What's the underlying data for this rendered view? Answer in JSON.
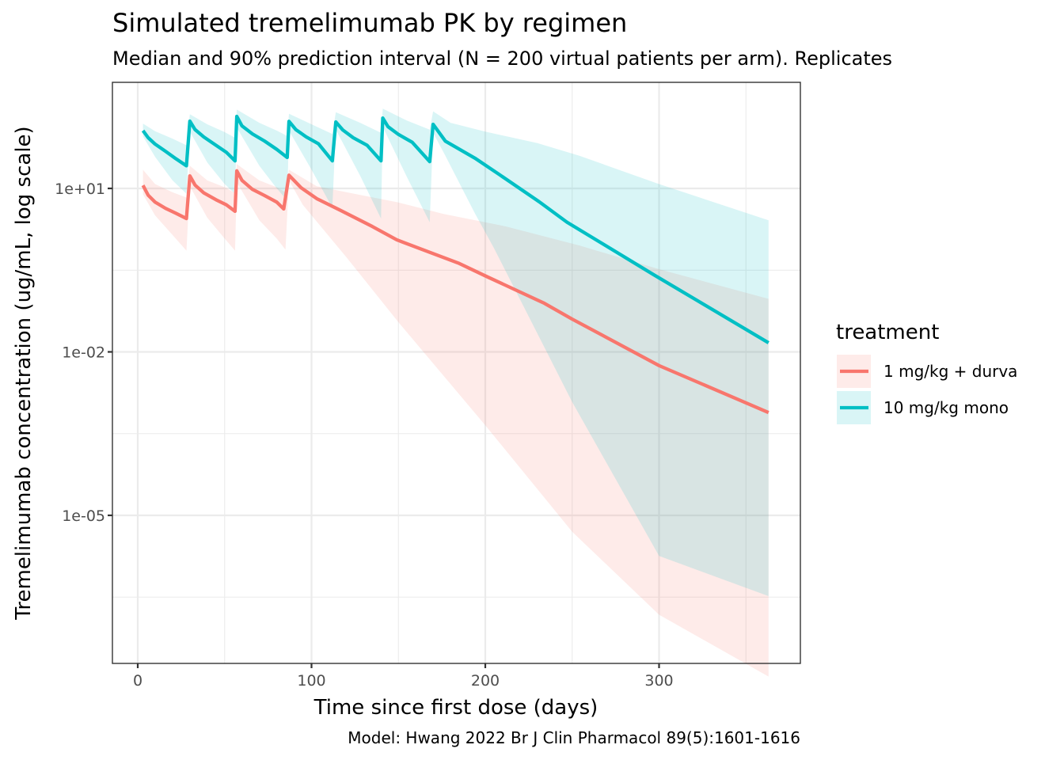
{
  "chart_data": {
    "type": "line",
    "title": "Simulated tremelimumab PK by regimen",
    "subtitle": "Median and 90% prediction interval (N = 200 virtual patients per arm). Replicates",
    "caption": "Model: Hwang 2022 Br J Clin Pharmacol 89(5):1601-1616",
    "xlabel": "Time since first dose (days)",
    "ylabel": "Tremelimumab concentration (ug/mL, log scale)",
    "y_scale": "log10",
    "xlim": [
      -15,
      381
    ],
    "ylim": [
      1e-08,
      3000
    ],
    "x_ticks": [
      0,
      100,
      200,
      300
    ],
    "x_tick_labels": [
      "0",
      "100",
      "200",
      "300"
    ],
    "x_minor_ticks": [
      50,
      150,
      250,
      350
    ],
    "y_ticks": [
      10,
      0.01,
      1e-05
    ],
    "y_tick_labels": [
      "1e+01",
      "1e-02",
      "1e-05"
    ],
    "y_minor_ticks": [
      10000,
      0.316,
      0.000316,
      3.16e-07
    ],
    "grid": true,
    "legend": {
      "title": "treatment",
      "position": "right"
    },
    "series": [
      {
        "name": "1 mg/kg + durva",
        "color": "#F8766D",
        "ribbon_color": "#F8766D",
        "median": [
          [
            3,
            11.4
          ],
          [
            6,
            7.5
          ],
          [
            10,
            5.6
          ],
          [
            16,
            4.3
          ],
          [
            22,
            3.5
          ],
          [
            28,
            2.8
          ],
          [
            30,
            17
          ],
          [
            33,
            11.5
          ],
          [
            38,
            8.3
          ],
          [
            45,
            6.2
          ],
          [
            51,
            5.0
          ],
          [
            56,
            3.8
          ],
          [
            57,
            21
          ],
          [
            60,
            14
          ],
          [
            66,
            9.6
          ],
          [
            73,
            7.4
          ],
          [
            80,
            5.6
          ],
          [
            84,
            4.2
          ],
          [
            87,
            17.5
          ],
          [
            94,
            10.3
          ],
          [
            103,
            6.5
          ],
          [
            117,
            3.9
          ],
          [
            135,
            2.0
          ],
          [
            149,
            1.14
          ],
          [
            167,
            0.69
          ],
          [
            185,
            0.42
          ],
          [
            201,
            0.24
          ],
          [
            234,
            0.078
          ],
          [
            250,
            0.04
          ],
          [
            300,
            0.0056
          ],
          [
            363,
            0.00077
          ]
        ],
        "lower": [
          [
            3,
            7.8
          ],
          [
            10,
            3.2
          ],
          [
            20,
            1.4
          ],
          [
            28,
            0.72
          ],
          [
            30,
            11
          ],
          [
            40,
            2.9
          ],
          [
            50,
            1.2
          ],
          [
            56,
            0.72
          ],
          [
            57,
            13
          ],
          [
            70,
            2.6
          ],
          [
            80,
            1.2
          ],
          [
            85,
            0.75
          ],
          [
            87,
            14
          ],
          [
            95,
            5.0
          ],
          [
            120,
            0.55
          ],
          [
            150,
            0.035
          ],
          [
            200,
            0.00045
          ],
          [
            250,
            5e-06
          ],
          [
            300,
            1.5e-07
          ],
          [
            363,
            1.1e-08
          ]
        ],
        "upper": [
          [
            3,
            22
          ],
          [
            10,
            12
          ],
          [
            20,
            8.5
          ],
          [
            28,
            6.8
          ],
          [
            30,
            26
          ],
          [
            40,
            14
          ],
          [
            50,
            10.5
          ],
          [
            56,
            8.2
          ],
          [
            57,
            28
          ],
          [
            70,
            14
          ],
          [
            80,
            10.5
          ],
          [
            85,
            8.5
          ],
          [
            87,
            22
          ],
          [
            103,
            11
          ],
          [
            126,
            7.8
          ],
          [
            149,
            5.6
          ],
          [
            176,
            3.4
          ],
          [
            212,
            2.0
          ],
          [
            254,
            0.9
          ],
          [
            300,
            0.33
          ],
          [
            363,
            0.094
          ]
        ]
      },
      {
        "name": "10 mg/kg mono",
        "color": "#00BFC4",
        "ribbon_color": "#00BFC4",
        "median": [
          [
            3,
            115
          ],
          [
            6,
            85
          ],
          [
            10,
            65
          ],
          [
            16,
            48
          ],
          [
            22,
            35
          ],
          [
            28,
            26
          ],
          [
            30,
            172
          ],
          [
            33,
            120
          ],
          [
            38,
            88
          ],
          [
            45,
            62
          ],
          [
            51,
            46
          ],
          [
            56,
            32
          ],
          [
            57,
            210
          ],
          [
            60,
            140
          ],
          [
            66,
            100
          ],
          [
            73,
            74
          ],
          [
            80,
            52
          ],
          [
            86,
            37
          ],
          [
            87,
            170
          ],
          [
            91,
            120
          ],
          [
            97,
            88
          ],
          [
            104,
            66
          ],
          [
            112,
            32
          ],
          [
            114,
            166
          ],
          [
            118,
            118
          ],
          [
            124,
            85
          ],
          [
            132,
            62
          ],
          [
            140,
            32
          ],
          [
            141,
            196
          ],
          [
            144,
            136
          ],
          [
            150,
            98
          ],
          [
            158,
            70
          ],
          [
            168,
            31
          ],
          [
            170,
            150
          ],
          [
            177,
            74
          ],
          [
            194,
            36
          ],
          [
            208,
            18
          ],
          [
            231,
            5.7
          ],
          [
            247,
            2.4
          ],
          [
            297,
            0.26
          ],
          [
            363,
            0.0147
          ]
        ],
        "lower": [
          [
            3,
            90
          ],
          [
            10,
            38
          ],
          [
            20,
            14
          ],
          [
            28,
            8
          ],
          [
            30,
            110
          ],
          [
            40,
            30
          ],
          [
            50,
            12
          ],
          [
            56,
            8
          ],
          [
            57,
            130
          ],
          [
            70,
            26
          ],
          [
            80,
            10
          ],
          [
            86,
            6
          ],
          [
            87,
            115
          ],
          [
            100,
            22
          ],
          [
            112,
            4.4
          ],
          [
            114,
            120
          ],
          [
            128,
            17
          ],
          [
            140,
            2.8
          ],
          [
            141,
            135
          ],
          [
            155,
            16
          ],
          [
            168,
            2.4
          ],
          [
            170,
            105
          ],
          [
            177,
            40
          ],
          [
            194,
            3.5
          ],
          [
            205,
            0.8
          ],
          [
            250,
            0.0012
          ],
          [
            300,
            1.8e-06
          ],
          [
            363,
            3.3e-07
          ]
        ],
        "upper": [
          [
            3,
            155
          ],
          [
            10,
            112
          ],
          [
            20,
            82
          ],
          [
            28,
            62
          ],
          [
            30,
            230
          ],
          [
            40,
            150
          ],
          [
            50,
            108
          ],
          [
            56,
            85
          ],
          [
            57,
            280
          ],
          [
            70,
            160
          ],
          [
            80,
            115
          ],
          [
            86,
            92
          ],
          [
            87,
            235
          ],
          [
            100,
            150
          ],
          [
            112,
            100
          ],
          [
            114,
            250
          ],
          [
            128,
            160
          ],
          [
            140,
            105
          ],
          [
            141,
            290
          ],
          [
            155,
            175
          ],
          [
            168,
            120
          ],
          [
            170,
            260
          ],
          [
            180,
            160
          ],
          [
            200,
            110
          ],
          [
            230,
            68
          ],
          [
            254,
            40
          ],
          [
            300,
            12
          ],
          [
            363,
            2.6
          ]
        ]
      }
    ]
  }
}
